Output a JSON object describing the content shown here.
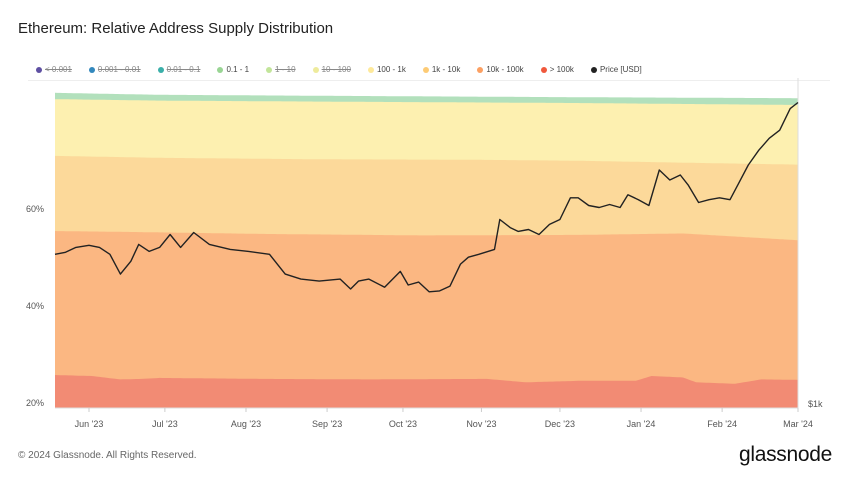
{
  "title": "Ethereum: Relative Address Supply Distribution",
  "legend": [
    {
      "label": "< 0.001",
      "color": "#5e4fa2",
      "active": false
    },
    {
      "label": "0.001 - 0.01",
      "color": "#3288bd",
      "active": false
    },
    {
      "label": "0.01 - 0.1",
      "color": "#3aafa9",
      "active": false
    },
    {
      "label": "0.1 - 1",
      "color": "#99d594",
      "active": true
    },
    {
      "label": "1 - 10",
      "color": "#c2e59a",
      "active": false
    },
    {
      "label": "10 - 100",
      "color": "#eeeb9c",
      "active": false
    },
    {
      "label": "100 - 1k",
      "color": "#fee99a",
      "active": true
    },
    {
      "label": "1k - 10k",
      "color": "#fdcb75",
      "active": true
    },
    {
      "label": "10k - 100k",
      "color": "#fca062",
      "active": true
    },
    {
      "label": "> 100k",
      "color": "#f0583c",
      "active": true
    },
    {
      "label": "Price [USD]",
      "color": "#222222",
      "active": true
    }
  ],
  "footer": "© 2024 Glassnode. All Rights Reserved.",
  "logo": "glassnode",
  "chart_data": {
    "type": "area",
    "title": "Ethereum: Relative Address Supply Distribution",
    "x_unit": "days since 2023-05-19",
    "x_range": [
      0,
      284
    ],
    "x_ticks": [
      {
        "day": 13,
        "label": "Jun '23"
      },
      {
        "day": 42,
        "label": "Jul '23"
      },
      {
        "day": 73,
        "label": "Aug '23"
      },
      {
        "day": 104,
        "label": "Sep '23"
      },
      {
        "day": 133,
        "label": "Oct '23"
      },
      {
        "day": 163,
        "label": "Nov '23"
      },
      {
        "day": 193,
        "label": "Dec '23"
      },
      {
        "day": 224,
        "label": "Jan '24"
      },
      {
        "day": 255,
        "label": "Feb '24"
      },
      {
        "day": 284,
        "label": "Mar '24"
      }
    ],
    "y_left": {
      "range": [
        19,
        85
      ],
      "ticks": [
        {
          "v": 20,
          "label": "20%"
        },
        {
          "v": 40,
          "label": "40%"
        },
        {
          "v": 60,
          "label": "60%"
        }
      ]
    },
    "y_right": {
      "scale": "log",
      "range": [
        1000,
        3600
      ],
      "ticks": [
        {
          "v": 1000,
          "label": "$1k"
        }
      ]
    },
    "stack_tops": [
      {
        "name": "> 100k",
        "fill": "#f28b74",
        "points": [
          [
            0,
            25.8
          ],
          [
            14,
            25.6
          ],
          [
            25,
            24.9
          ],
          [
            33,
            25.0
          ],
          [
            40,
            25.2
          ],
          [
            80,
            25.0
          ],
          [
            120,
            24.9
          ],
          [
            165,
            25.0
          ],
          [
            180,
            24.3
          ],
          [
            200,
            24.6
          ],
          [
            222,
            24.6
          ],
          [
            228,
            25.6
          ],
          [
            240,
            25.3
          ],
          [
            245,
            24.3
          ],
          [
            260,
            24.0
          ],
          [
            270,
            24.9
          ],
          [
            284,
            24.8
          ]
        ]
      },
      {
        "name": "10k - 100k",
        "fill": "#fbb782",
        "points": [
          [
            0,
            55.5
          ],
          [
            30,
            55.3
          ],
          [
            80,
            54.9
          ],
          [
            140,
            54.6
          ],
          [
            200,
            54.7
          ],
          [
            240,
            55.0
          ],
          [
            284,
            53.6
          ]
        ]
      },
      {
        "name": "1k - 10k",
        "fill": "#fcd99a",
        "points": [
          [
            0,
            71.0
          ],
          [
            40,
            70.6
          ],
          [
            100,
            70.3
          ],
          [
            160,
            70.2
          ],
          [
            200,
            70.0
          ],
          [
            240,
            69.6
          ],
          [
            284,
            69.2
          ]
        ]
      },
      {
        "name": "100 - 1k",
        "fill": "#fdf0b0",
        "points": [
          [
            0,
            82.7
          ],
          [
            40,
            82.4
          ],
          [
            100,
            82.2
          ],
          [
            200,
            81.9
          ],
          [
            284,
            81.5
          ]
        ]
      },
      {
        "name": "0.1 - 1",
        "fill": "#b2e0bc",
        "points": [
          [
            0,
            84.0
          ],
          [
            40,
            83.6
          ],
          [
            100,
            83.4
          ],
          [
            200,
            83.1
          ],
          [
            284,
            82.9
          ]
        ]
      }
    ],
    "price": [
      [
        0,
        1850
      ],
      [
        4,
        1865
      ],
      [
        8,
        1902
      ],
      [
        13,
        1918
      ],
      [
        17,
        1902
      ],
      [
        21,
        1850
      ],
      [
        25,
        1709
      ],
      [
        29,
        1800
      ],
      [
        32,
        1925
      ],
      [
        36,
        1872
      ],
      [
        40,
        1902
      ],
      [
        44,
        2003
      ],
      [
        48,
        1902
      ],
      [
        53,
        2019
      ],
      [
        59,
        1925
      ],
      [
        67,
        1887
      ],
      [
        74,
        1872
      ],
      [
        82,
        1850
      ],
      [
        88,
        1709
      ],
      [
        94,
        1675
      ],
      [
        101,
        1662
      ],
      [
        109,
        1675
      ],
      [
        113,
        1610
      ],
      [
        116,
        1662
      ],
      [
        120,
        1675
      ],
      [
        126,
        1622
      ],
      [
        132,
        1728
      ],
      [
        135,
        1636
      ],
      [
        139,
        1655
      ],
      [
        143,
        1592
      ],
      [
        147,
        1598
      ],
      [
        151,
        1629
      ],
      [
        155,
        1779
      ],
      [
        158,
        1829
      ],
      [
        162,
        1850
      ],
      [
        168,
        1887
      ],
      [
        170,
        2127
      ],
      [
        174,
        2059
      ],
      [
        177,
        2028
      ],
      [
        181,
        2043
      ],
      [
        185,
        2003
      ],
      [
        189,
        2085
      ],
      [
        193,
        2127
      ],
      [
        197,
        2320
      ],
      [
        200,
        2320
      ],
      [
        204,
        2249
      ],
      [
        208,
        2231
      ],
      [
        212,
        2258
      ],
      [
        216,
        2231
      ],
      [
        219,
        2348
      ],
      [
        223,
        2302
      ],
      [
        227,
        2249
      ],
      [
        231,
        2593
      ],
      [
        235,
        2491
      ],
      [
        239,
        2541
      ],
      [
        242,
        2443
      ],
      [
        246,
        2276
      ],
      [
        250,
        2302
      ],
      [
        254,
        2320
      ],
      [
        258,
        2302
      ],
      [
        261,
        2443
      ],
      [
        265,
        2645
      ],
      [
        269,
        2806
      ],
      [
        273,
        2944
      ],
      [
        277,
        3040
      ],
      [
        281,
        3315
      ],
      [
        284,
        3397
      ]
    ]
  }
}
